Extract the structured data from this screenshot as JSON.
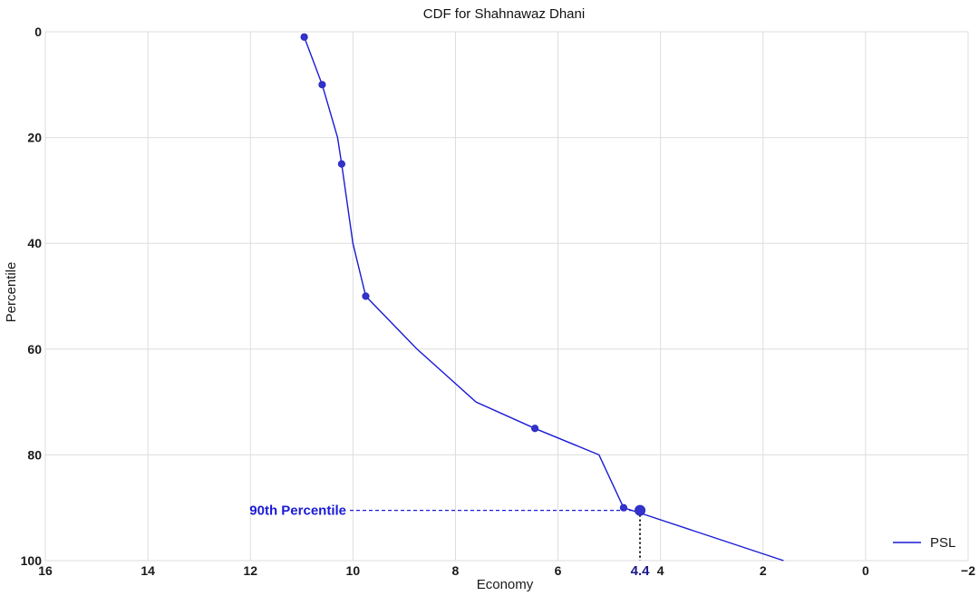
{
  "chart_data": {
    "type": "line",
    "title": "CDF for Shahnawaz Dhani",
    "xlabel": "Economy",
    "ylabel": "Percentile",
    "xlim": [
      16,
      -2
    ],
    "ylim": [
      100,
      0
    ],
    "x_inverted": true,
    "y_inverted": true,
    "x_ticks": [
      16,
      14,
      12,
      10,
      8,
      6,
      4,
      2,
      0,
      -2
    ],
    "x_tick_labels": [
      "16",
      "14",
      "12",
      "10",
      "8",
      "6",
      "4",
      "2",
      "0",
      "−2"
    ],
    "y_ticks": [
      0,
      20,
      40,
      60,
      80,
      100
    ],
    "y_tick_labels": [
      "0",
      "20",
      "40",
      "60",
      "80",
      "100"
    ],
    "grid": true,
    "legend_position": "lower-right",
    "series": [
      {
        "name": "PSL",
        "color": "#1a1ad6",
        "x": [
          10.95,
          10.6,
          10.3,
          10.22,
          10.0,
          9.75,
          8.75,
          7.6,
          6.45,
          5.2,
          4.72,
          4.4,
          1.6
        ],
        "y": [
          1,
          10,
          20,
          25,
          40,
          50,
          60,
          70,
          75,
          80,
          90,
          91,
          100
        ]
      }
    ],
    "markers": {
      "x": [
        10.95,
        10.6,
        10.22,
        9.75,
        6.45,
        4.72
      ],
      "y": [
        1,
        10,
        25,
        50,
        75,
        90
      ]
    },
    "highlight": {
      "label": "90th Percentile",
      "x": 4.4,
      "y": 90.5,
      "value_label": "4.4",
      "color": "#1a1ad6"
    }
  }
}
